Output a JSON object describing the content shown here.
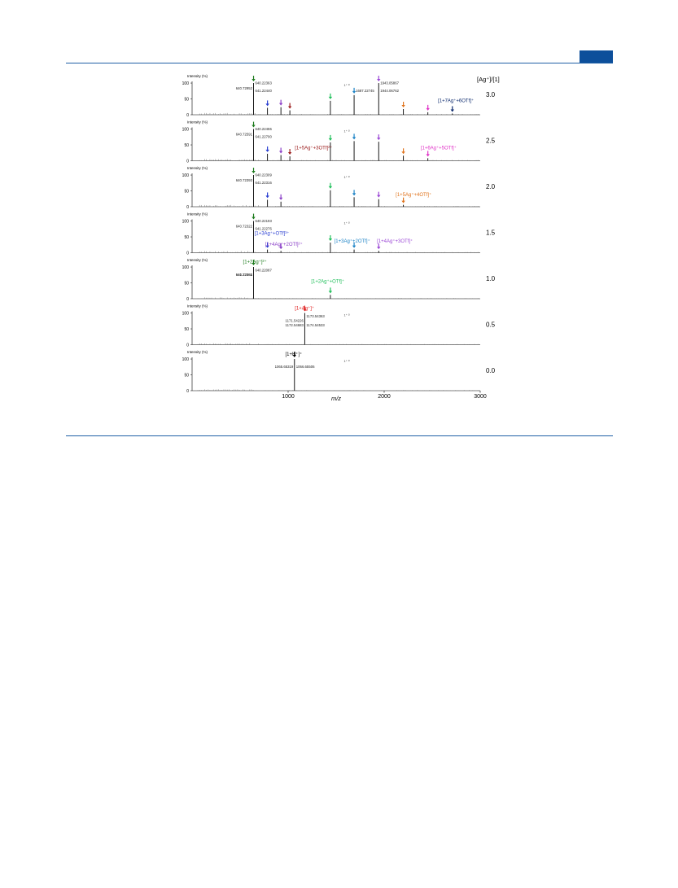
{
  "page": {
    "colors": {
      "rule": "#1f5fa6",
      "header_tab": "#0d4f9b"
    }
  },
  "chart_data": {
    "type": "line",
    "xlabel": "m/z",
    "xlim": [
      0,
      3000
    ],
    "x_ticks": [
      "1000",
      "2000",
      "3000"
    ],
    "ratio_header": "[Ag⁺]/[1]",
    "y_ticks": [
      "100",
      "50",
      "0"
    ],
    "ylabel": "Intensity (%)",
    "ylim": [
      0,
      100
    ],
    "panels": [
      {
        "ratio": "3.0",
        "corner_mark": "1⁺ ²⁾",
        "peaks": [
          {
            "x": 640,
            "y": 100,
            "color": "#1b7a1b"
          },
          {
            "x": 785,
            "y": 22,
            "color": "#2a3fd1"
          },
          {
            "x": 925,
            "y": 24,
            "color": "#8a3fc7"
          },
          {
            "x": 1018,
            "y": 14,
            "color": "#9b1c1c"
          },
          {
            "x": 1440,
            "y": 44,
            "color": "#1fbf5a"
          },
          {
            "x": 1687,
            "y": 62,
            "color": "#1d83c6"
          },
          {
            "x": 1943,
            "y": 100,
            "color": "#9b47d6"
          },
          {
            "x": 2200,
            "y": 18,
            "color": "#e0731c"
          },
          {
            "x": 2455,
            "y": 8,
            "color": "#e033c7"
          },
          {
            "x": 2710,
            "y": 4,
            "color": "#0d2a6e"
          }
        ],
        "peak_labels": [
          {
            "text": "640.72952",
            "x": 640,
            "y": 80
          },
          {
            "text": "640.22363",
            "x": 640,
            "y": 96
          },
          {
            "text": "641.22440",
            "x": 640,
            "y": 72
          },
          {
            "text": "1687.22745",
            "x": 1687,
            "y": 72
          },
          {
            "text": "1943.05867",
            "x": 1943,
            "y": 96
          },
          {
            "text": "1944.06762",
            "x": 1943,
            "y": 72
          }
        ],
        "annotations": [
          {
            "text": "[1+7Ag⁺+6OTf]⁺",
            "color": "#0d2a6e",
            "x": 2560,
            "y": 40
          }
        ]
      },
      {
        "ratio": "2.5",
        "corner_mark": "1⁺ ²⁾",
        "peaks": [
          {
            "x": 640,
            "y": 100,
            "color": "#1b7a1b"
          },
          {
            "x": 785,
            "y": 22,
            "color": "#2a3fd1"
          },
          {
            "x": 925,
            "y": 18,
            "color": "#8a3fc7"
          },
          {
            "x": 1018,
            "y": 14,
            "color": "#9b1c1c"
          },
          {
            "x": 1440,
            "y": 58,
            "color": "#1fbf5a"
          },
          {
            "x": 1687,
            "y": 62,
            "color": "#1d83c6"
          },
          {
            "x": 1943,
            "y": 60,
            "color": "#9b47d6"
          },
          {
            "x": 2200,
            "y": 16,
            "color": "#e0731c"
          },
          {
            "x": 2455,
            "y": 8,
            "color": "#e033c7"
          }
        ],
        "peak_labels": [
          {
            "text": "640.22455",
            "x": 640,
            "y": 96
          },
          {
            "text": "640.72591",
            "x": 640,
            "y": 80
          },
          {
            "text": "641.22700",
            "x": 640,
            "y": 72
          }
        ],
        "annotations": [
          {
            "text": "[1+5Ag⁺+3OTf]²⁺",
            "color": "#9b1c1c",
            "x": 1070,
            "y": 36
          },
          {
            "text": "[1+6Ag⁺+5OTf]⁺",
            "color": "#e033c7",
            "x": 2380,
            "y": 36
          }
        ]
      },
      {
        "ratio": "2.0",
        "corner_mark": "1⁺ ²⁾",
        "peaks": [
          {
            "x": 640,
            "y": 100,
            "color": "#1b7a1b"
          },
          {
            "x": 785,
            "y": 22,
            "color": "#2a3fd1"
          },
          {
            "x": 925,
            "y": 16,
            "color": "#8a3fc7"
          },
          {
            "x": 1440,
            "y": 52,
            "color": "#1fbf5a"
          },
          {
            "x": 1687,
            "y": 30,
            "color": "#1d83c6"
          },
          {
            "x": 1943,
            "y": 24,
            "color": "#9b47d6"
          },
          {
            "x": 2200,
            "y": 6,
            "color": "#e0731c"
          }
        ],
        "peak_labels": [
          {
            "text": "640.22309",
            "x": 640,
            "y": 96
          },
          {
            "text": "640.72393",
            "x": 640,
            "y": 80
          },
          {
            "text": "641.22316",
            "x": 640,
            "y": 72
          }
        ],
        "annotations": [
          {
            "text": "[1+5Ag⁺+4OTf]⁺",
            "color": "#e0731c",
            "x": 2120,
            "y": 34
          }
        ]
      },
      {
        "ratio": "1.5",
        "corner_mark": "1⁺ ²⁾",
        "peaks": [
          {
            "x": 640,
            "y": 100,
            "color": "#1b7a1b"
          },
          {
            "x": 785,
            "y": 10,
            "color": "#2a3fd1"
          },
          {
            "x": 925,
            "y": 6,
            "color": "#8a3fc7"
          },
          {
            "x": 1440,
            "y": 32,
            "color": "#1fbf5a"
          },
          {
            "x": 1687,
            "y": 10,
            "color": "#1d83c6"
          },
          {
            "x": 1943,
            "y": 6,
            "color": "#9b47d6"
          }
        ],
        "peak_labels": [
          {
            "text": "640.22193",
            "x": 640,
            "y": 96
          },
          {
            "text": "640.72322",
            "x": 640,
            "y": 80
          },
          {
            "text": "641.22276",
            "x": 640,
            "y": 72
          }
        ],
        "annotations": [
          {
            "text": "[1+3Ag⁺+OTf]³⁺",
            "color": "#2a3fd1",
            "x": 650,
            "y": 56
          },
          {
            "text": "[1+4Ag⁺+2OTf]²⁺",
            "color": "#8a3fc7",
            "x": 760,
            "y": 22
          },
          {
            "text": "[1+3Ag⁺+2OTf]⁺",
            "color": "#1d83c6",
            "x": 1480,
            "y": 32
          },
          {
            "text": "[1+4Ag⁺+3OTf]⁺",
            "color": "#9b47d6",
            "x": 1925,
            "y": 32
          }
        ]
      },
      {
        "ratio": "1.0",
        "corner_mark": "",
        "peaks": [
          {
            "x": 640,
            "y": 100,
            "color": "#1b7a1b"
          },
          {
            "x": 1440,
            "y": 12,
            "color": "#1fbf5a"
          }
        ],
        "peak_labels": [
          {
            "text": "640.22087",
            "x": 640,
            "y": 86
          },
          {
            "text": "641.22081",
            "x": 640,
            "y": 72
          },
          {
            "text": "640.72364",
            "x": 640,
            "y": 72
          }
        ],
        "annotations": [
          {
            "text": "[1+2Ag⁺]²⁺",
            "color": "#1b7a1b",
            "x": 530,
            "y": 112
          },
          {
            "text": "[1+2Ag⁺+OTf]⁺",
            "color": "#1fbf5a",
            "x": 1240,
            "y": 50
          }
        ]
      },
      {
        "ratio": "0.5",
        "corner_mark": "1⁺ ²⁾",
        "peaks": [
          {
            "x": 1173,
            "y": 100,
            "color": "#e02020"
          }
        ],
        "peak_labels": [
          {
            "text": "1173.54363",
            "x": 1173,
            "y": 86
          },
          {
            "text": "1171.54226",
            "x": 1173,
            "y": 72
          },
          {
            "text": "1172.54683",
            "x": 1173,
            "y": 58
          },
          {
            "text": "1174.54533",
            "x": 1173,
            "y": 58
          }
        ],
        "annotations": [
          {
            "text": "[1+Ag⁺]⁺",
            "color": "#e02020",
            "x": 1070,
            "y": 110
          }
        ]
      },
      {
        "ratio": "0.0",
        "corner_mark": "1⁺ ²⁾",
        "peaks": [
          {
            "x": 1066,
            "y": 100,
            "color": "#000000"
          }
        ],
        "peak_labels": [
          {
            "text": "1065.65319",
            "x": 1066,
            "y": 72
          },
          {
            "text": "1066.65506",
            "x": 1066,
            "y": 72
          }
        ],
        "annotations": [
          {
            "text": "[1+H⁺]⁺",
            "color": "#000000",
            "x": 970,
            "y": 110
          }
        ]
      }
    ]
  }
}
